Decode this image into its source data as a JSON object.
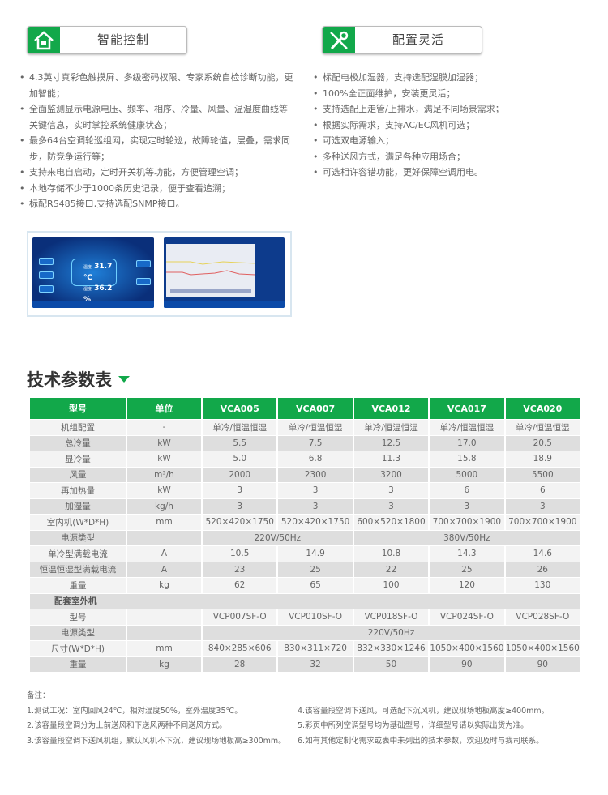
{
  "badges": [
    {
      "label": "智能控制",
      "icon": "house-icon"
    },
    {
      "label": "配置灵活",
      "icon": "tools-icon"
    }
  ],
  "features_left": [
    "4.3英寸真彩色触摸屏、多级密码权限、专家系统自检诊断功能，更加智能；",
    "全面监测显示电源电压、频率、相序、冷量、风量、温湿度曲线等关键信息，实时掌控系统健康状态；",
    "最多64台空调轮巡组网，实现定时轮巡，故障轮值，层叠，需求同步，防竞争运行等；",
    "支持来电自启动，定时开关机等功能，方便管理空调；",
    "本地存储不少于1000条历史记录，便于查看追溯；",
    "标配RS485接口,支持选配SNMP接口。"
  ],
  "features_right": [
    "标配电极加湿器，支持选配湿膜加湿器；",
    "100%全正面维护，安装更灵活；",
    "支持选配上走管/上排水，满足不同场景需求；",
    "根据实际需求，支持AC/EC风机可选；",
    "可选双电源输入；",
    "多种送风方式，满足各种应用场合；",
    "可选相许容错功能，更好保障空调用电。"
  ],
  "screen": {
    "temp_label": "温度",
    "temp": "31.7 ℃",
    "hum_label": "湿度",
    "hum": "36.2 %"
  },
  "section_title": "技术参数表",
  "table": {
    "headers": [
      "型号",
      "单位",
      "VCA005",
      "VCA007",
      "VCA012",
      "VCA017",
      "VCA020"
    ],
    "rows": [
      {
        "cells": [
          "机组配置",
          "-",
          "单冷/恒温恒湿",
          "单冷/恒温恒湿",
          "单冷/恒温恒湿",
          "单冷/恒温恒湿",
          "单冷/恒温恒湿"
        ]
      },
      {
        "cells": [
          "总冷量",
          "kW",
          "5.5",
          "7.5",
          "12.5",
          "17.0",
          "20.5"
        ]
      },
      {
        "cells": [
          "显冷量",
          "kW",
          "5.0",
          "6.8",
          "11.3",
          "15.8",
          "18.9"
        ]
      },
      {
        "cells": [
          "风量",
          "m³/h",
          "2000",
          "2300",
          "3200",
          "5000",
          "5500"
        ]
      },
      {
        "cells": [
          "再加热量",
          "kW",
          "3",
          "3",
          "3",
          "6",
          "6"
        ]
      },
      {
        "cells": [
          "加湿量",
          "kg/h",
          "3",
          "3",
          "3",
          "3",
          "3"
        ]
      },
      {
        "cells": [
          "室内机(W*D*H)",
          "mm",
          "520×420×1750",
          "520×420×1750",
          "600×520×1800",
          "700×700×1900",
          "700×700×1900"
        ]
      },
      {
        "cells": [
          "电源类型",
          "",
          "220V/50Hz",
          "380V/50Hz"
        ],
        "spans": [
          1,
          1,
          2,
          3
        ]
      },
      {
        "cells": [
          "单冷型满载电流",
          "A",
          "10.5",
          "14.9",
          "10.8",
          "14.3",
          "14.6"
        ]
      },
      {
        "cells": [
          "恒温恒湿型满载电流",
          "A",
          "23",
          "25",
          "22",
          "25",
          "26"
        ]
      },
      {
        "cells": [
          "重量",
          "kg",
          "62",
          "65",
          "100",
          "120",
          "130"
        ]
      },
      {
        "section": "配套室外机"
      },
      {
        "cells": [
          "型号",
          "",
          "VCP007SF-O",
          "VCP010SF-O",
          "VCP018SF-O",
          "VCP024SF-O",
          "VCP028SF-O"
        ]
      },
      {
        "cells": [
          "电源类型",
          "",
          "220V/50Hz"
        ],
        "spans": [
          1,
          1,
          5
        ]
      },
      {
        "cells": [
          "尺寸(W*D*H)",
          "mm",
          "840×285×606",
          "830×311×720",
          "832×330×1246",
          "1050×400×1560",
          "1050×400×1560"
        ]
      },
      {
        "cells": [
          "重量",
          "kg",
          "28",
          "32",
          "50",
          "90",
          "90"
        ]
      }
    ]
  },
  "notes": {
    "title": "备注：",
    "left": [
      "1.测试工况：室内回风24℃，相对湿度50%，室外温度35℃。",
      "2.该容量段空调分为上前送风和下送风两种不同送风方式。",
      "3.该容量段空调下送风机组，默认风机不下沉，建议现场地板高≥300mm。"
    ],
    "right": [
      "4.该容量段空调下送风，可选配下沉风机，建议现场地板高度≥400mm。",
      "5.彩页中所列空调型号均为基础型号，详细型号请以实际出货为准。",
      "6.如有其他定制化需求或表中未列出的技术参数，欢迎及时与我司联系。"
    ]
  },
  "colors": {
    "accent": "#12a84a",
    "row_light": "#f3f3f3",
    "row_dark": "#dedede"
  }
}
